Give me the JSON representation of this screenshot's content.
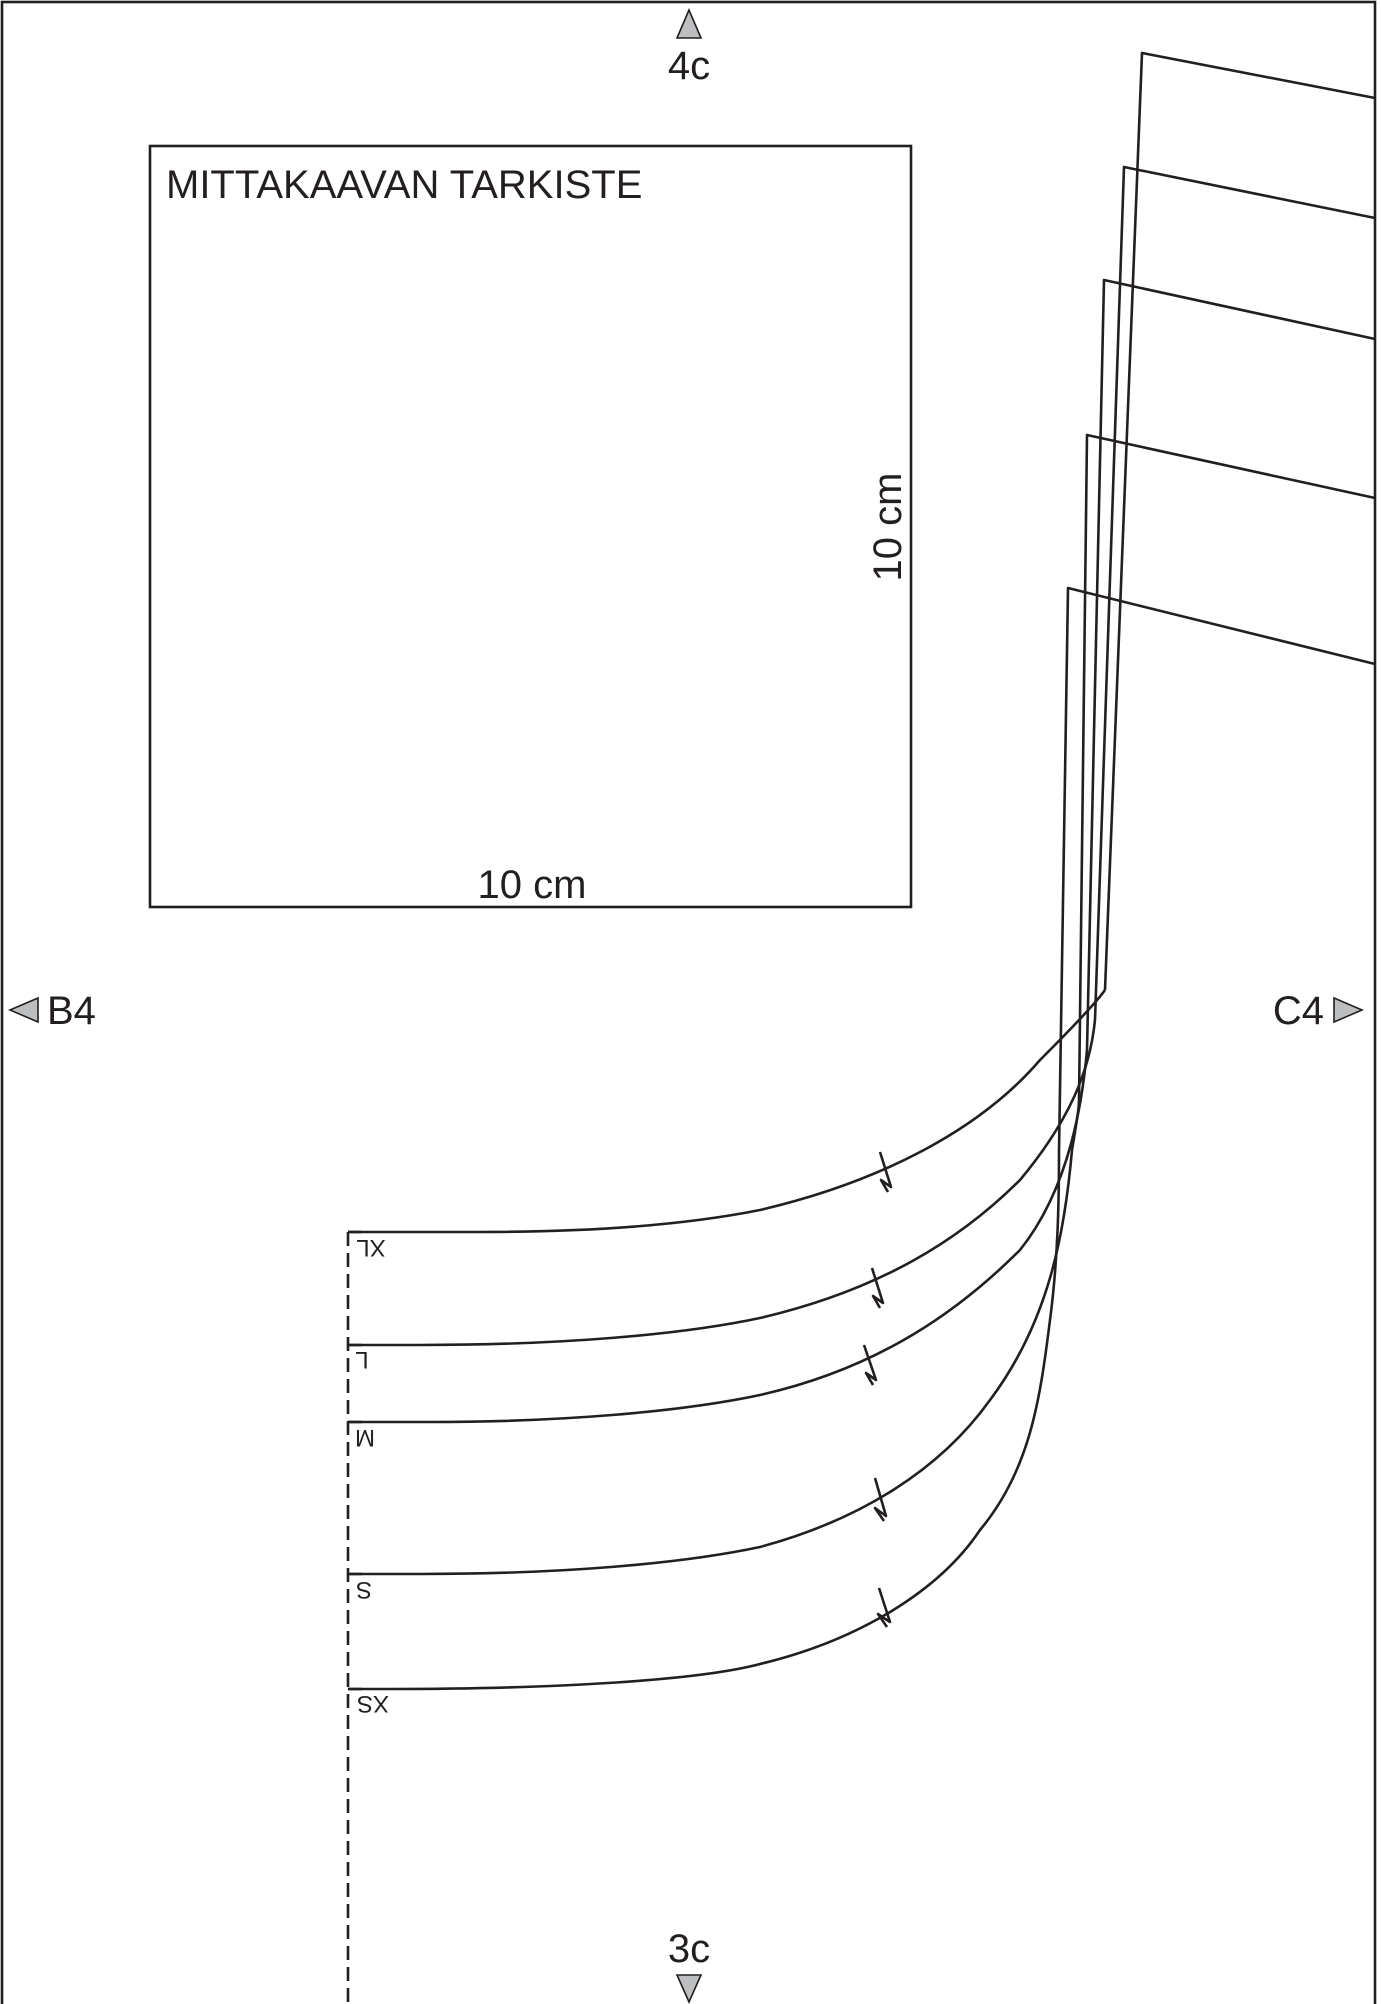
{
  "sheet": {
    "markers": {
      "top": "4c",
      "bottom": "3c",
      "left": "B4",
      "right": "C4"
    }
  },
  "scale_check": {
    "title": "MITTAKAAVAN TARKISTE",
    "width_label": "10 cm",
    "height_label": "10 cm"
  },
  "sizes": [
    {
      "label": "XL"
    },
    {
      "label": "L"
    },
    {
      "label": "M"
    },
    {
      "label": "S"
    },
    {
      "label": "XS"
    }
  ],
  "colors": {
    "line": "#231f20",
    "marker_fill": "#bcbec0",
    "background": "#ffffff"
  }
}
